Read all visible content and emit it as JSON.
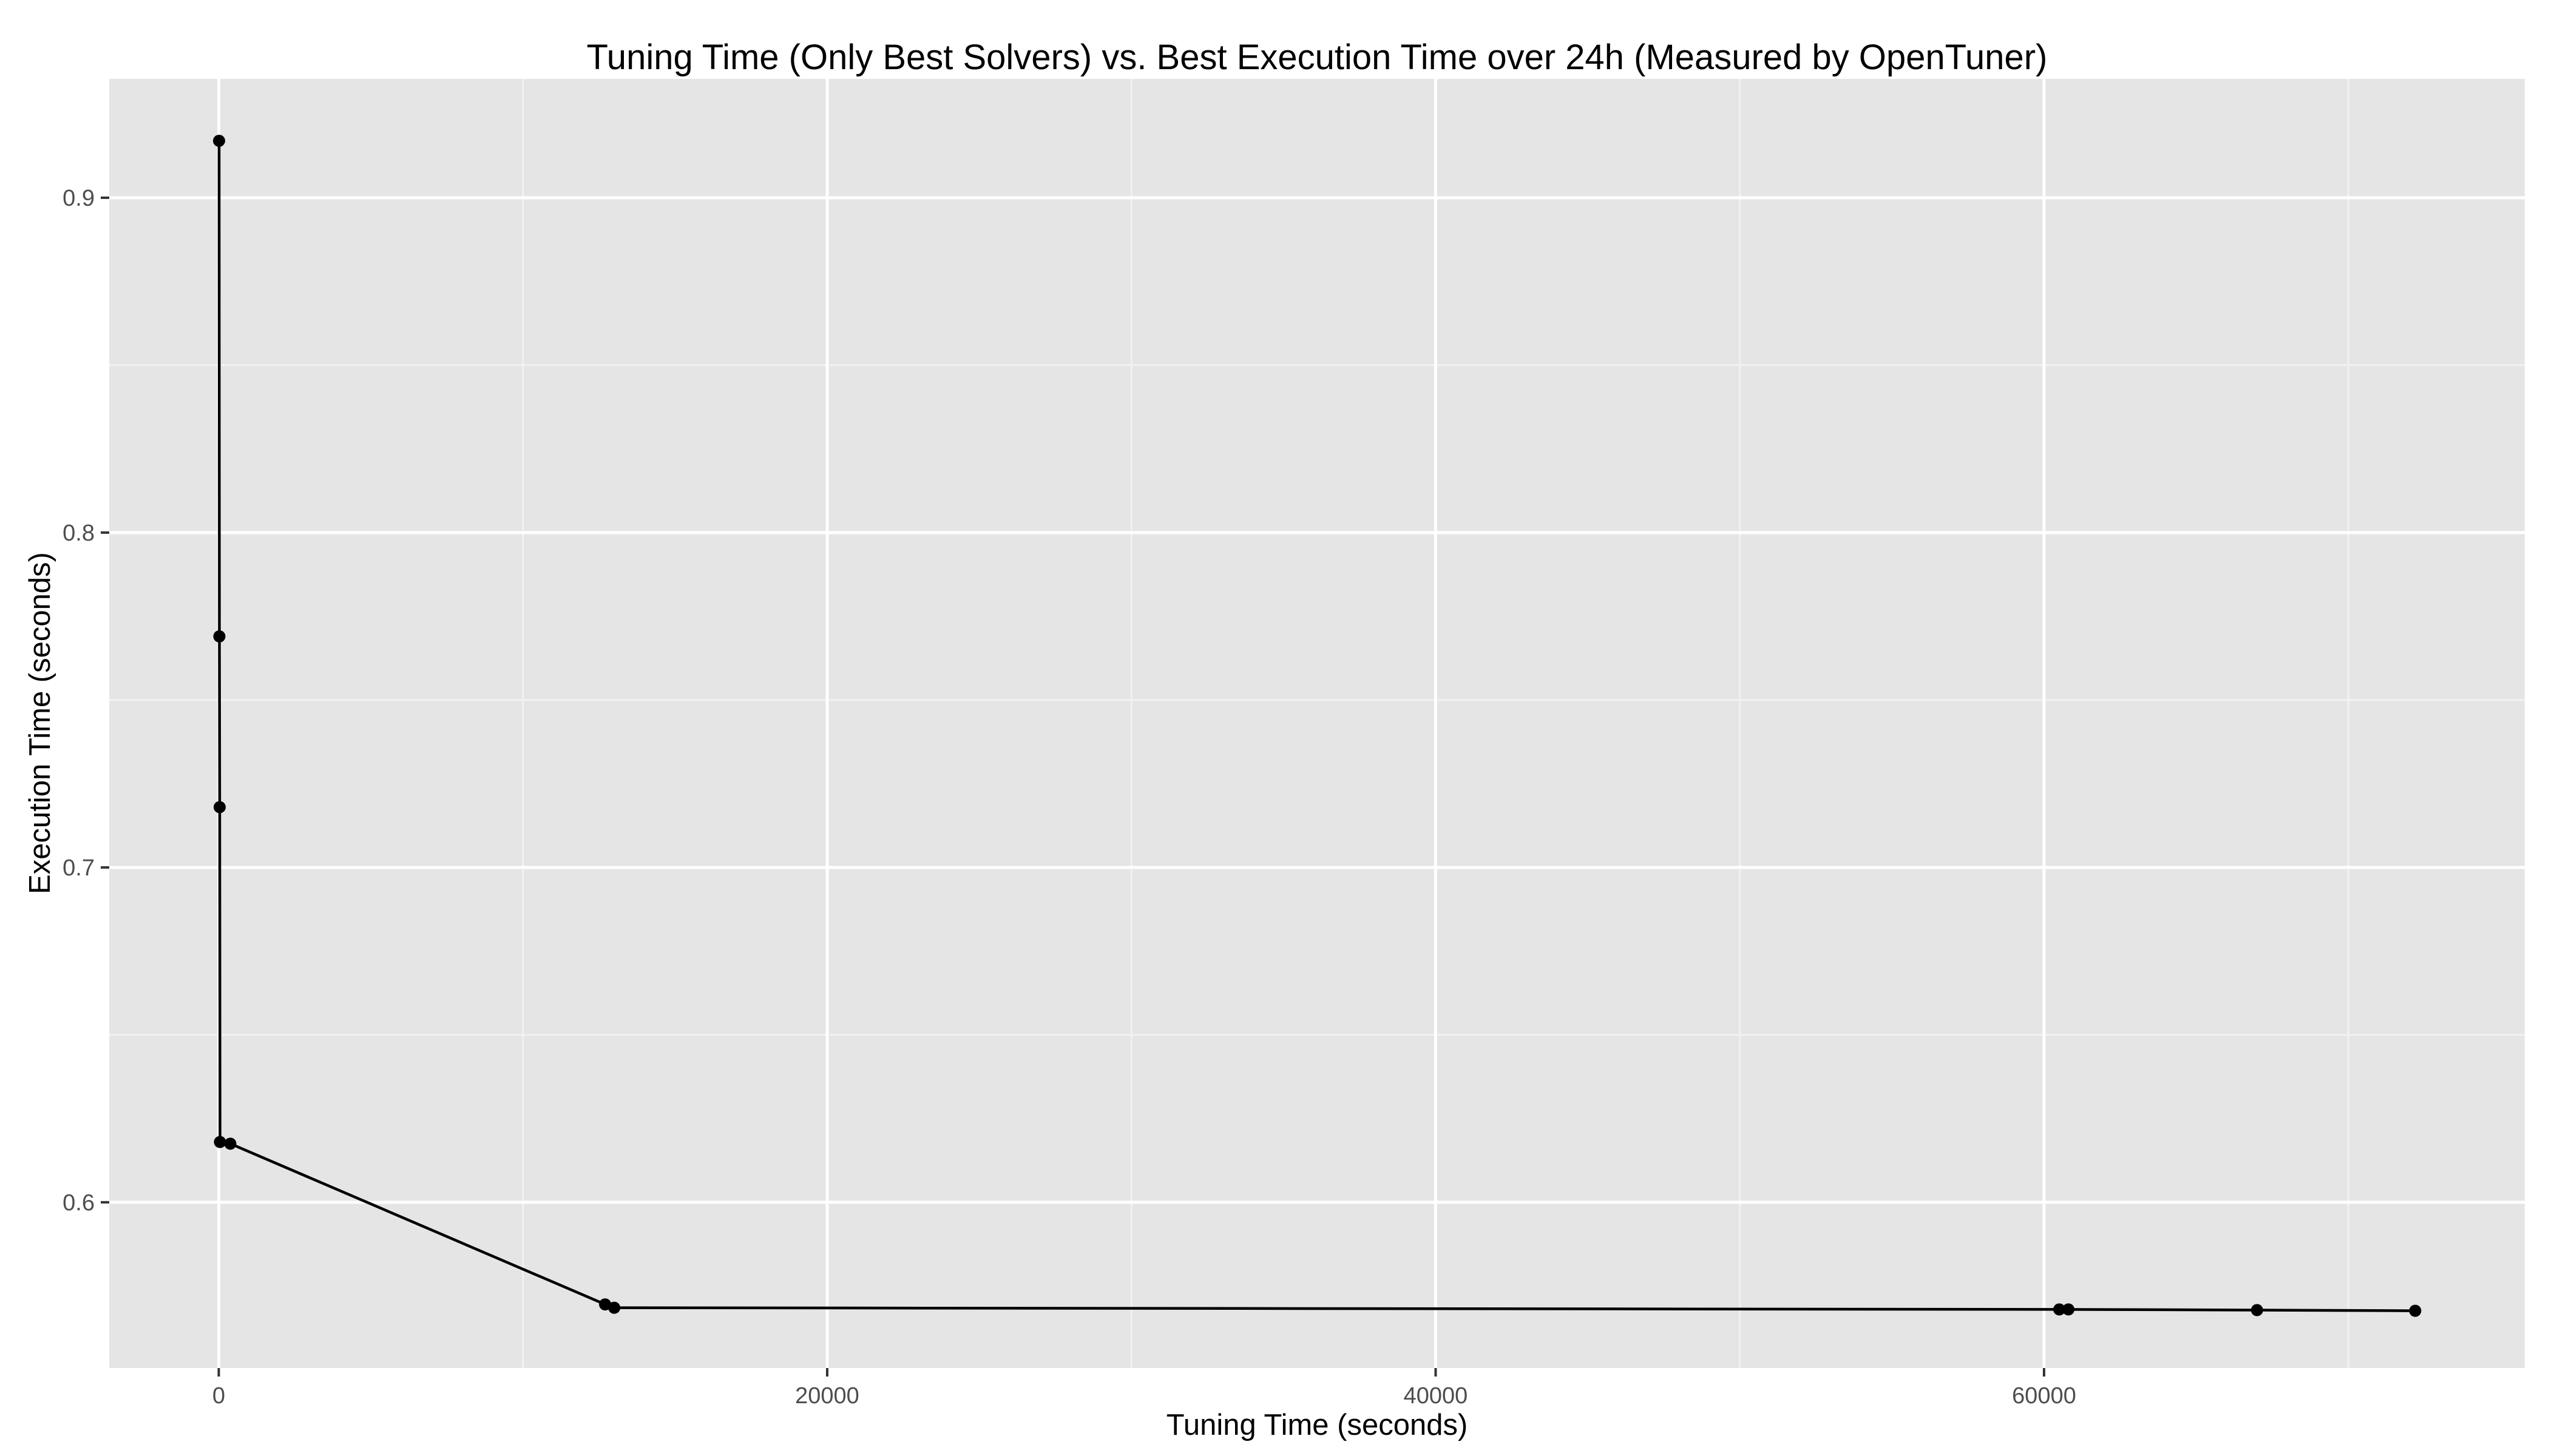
{
  "chart_data": {
    "type": "line",
    "title": "Tuning Time (Only Best Solvers) vs. Best Execution Time over 24h (Measured by OpenTuner)",
    "xlabel": "Tuning Time (seconds)",
    "ylabel": "Execution Time (seconds)",
    "xlim": [
      -3600,
      75800
    ],
    "ylim": [
      0.5505,
      0.9355
    ],
    "x_ticks": [
      0,
      20000,
      40000,
      60000
    ],
    "x_tick_labels": [
      "0",
      "20000",
      "40000",
      "60000"
    ],
    "x_minor_ticks": [
      10000,
      30000,
      50000,
      70000
    ],
    "y_ticks": [
      0.6,
      0.7,
      0.8,
      0.9
    ],
    "y_tick_labels": [
      "0.6",
      "0.7",
      "0.8",
      "0.9"
    ],
    "y_minor_ticks": [
      0.65,
      0.75,
      0.85
    ],
    "grid": true,
    "legend": "none",
    "colors": {
      "panel": "#e5e5e5",
      "grid_major": "#ffffff",
      "grid_minor": "#f2f2f2",
      "series": "#000000",
      "tick_label": "#4d4d4d"
    },
    "series": [
      {
        "x": [
          10,
          20,
          30,
          40,
          380,
          12700,
          13000,
          60500,
          60800,
          67000,
          72200
        ],
        "y": [
          0.917,
          0.769,
          0.718,
          0.618,
          0.6175,
          0.5695,
          0.5685,
          0.568,
          0.568,
          0.5678,
          0.5676
        ]
      }
    ]
  }
}
